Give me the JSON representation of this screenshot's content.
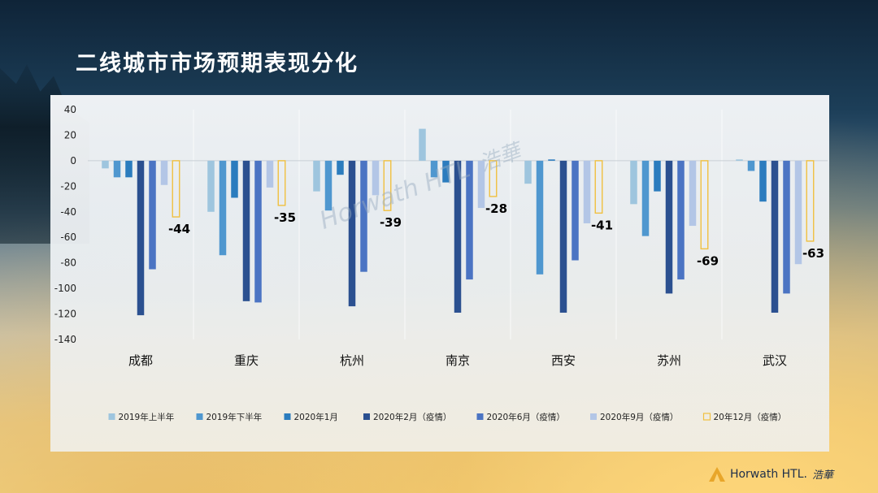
{
  "slide": {
    "title": "二线城市市场预期表现分化",
    "watermark": {
      "text": "Horwath HTL",
      "cn": "浩華"
    },
    "footer_logo": {
      "text": "Horwath HTL.",
      "cn": "浩華"
    }
  },
  "chart_data": {
    "type": "bar",
    "title": "",
    "xlabel": "",
    "ylabel": "",
    "ylim": [
      -140,
      40
    ],
    "yticks": [
      40,
      20,
      0,
      -20,
      -40,
      -60,
      -80,
      -100,
      -120,
      -140
    ],
    "grid": false,
    "legend_position": "bottom",
    "categories": [
      "成都",
      "重庆",
      "杭州",
      "南京",
      "西安",
      "苏州",
      "武汉"
    ],
    "series": [
      {
        "name": "2019年上半年",
        "color": "#9ec5de",
        "values": [
          -6,
          -40,
          -24,
          25,
          -18,
          -34,
          1
        ]
      },
      {
        "name": "2019年下半年",
        "color": "#4f97cf",
        "values": [
          -13,
          -74,
          -39,
          -13,
          -89,
          -59,
          -8
        ]
      },
      {
        "name": "2020年1月",
        "color": "#2b7cbe",
        "values": [
          -13,
          -29,
          -11,
          -17,
          1,
          -24,
          -32
        ]
      },
      {
        "name": "2020年2月（疫情）",
        "color": "#2b5090",
        "values": [
          -121,
          -110,
          -114,
          -119,
          -119,
          -104,
          -119
        ]
      },
      {
        "name": "2020年6月（疫情）",
        "color": "#4b74c3",
        "values": [
          -85,
          -111,
          -87,
          -93,
          -78,
          -93,
          -104
        ]
      },
      {
        "name": "2020年9月（疫情）",
        "color": "#b3c6e6",
        "values": [
          -19,
          -21,
          -27,
          -37,
          -49,
          -51,
          -81
        ]
      },
      {
        "name": "20年12月（疫情）",
        "color": "#f0c040",
        "outline": true,
        "values": [
          -44,
          -35,
          -39,
          -28,
          -41,
          -69,
          -63
        ]
      }
    ],
    "data_labels": [
      "-44",
      "-35",
      "-39",
      "-28",
      "-41",
      "-69",
      "-63"
    ]
  }
}
